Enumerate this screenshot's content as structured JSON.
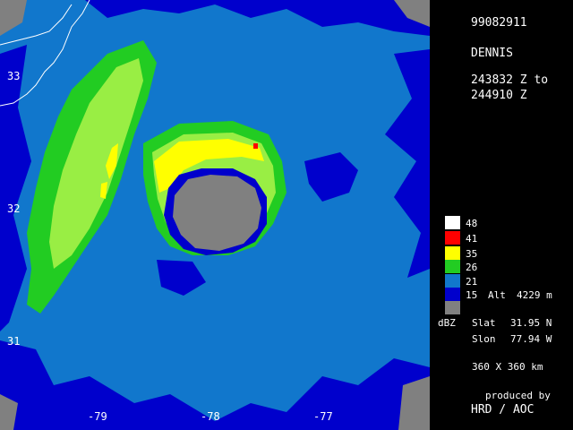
{
  "header": {
    "date_code": "99082911",
    "storm_name": "DENNIS",
    "time_start": "243832 Z to",
    "time_end": "244910 Z"
  },
  "legend": {
    "unit": "dBZ",
    "levels": [
      {
        "label": "48",
        "color": "#ffffff"
      },
      {
        "label": "41",
        "color": "#ff0000"
      },
      {
        "label": "35",
        "color": "#ffff00"
      },
      {
        "label": "26",
        "color": "#22cc22"
      },
      {
        "label": "21",
        "color": "#1177cc"
      },
      {
        "label": "15",
        "color": "#0000cc"
      },
      {
        "label": "",
        "color": "#808080"
      }
    ]
  },
  "info": {
    "alt_label": "Alt",
    "alt_value": "4229 m",
    "slat_label": "Slat",
    "slat_value": "31.95 N",
    "slon_label": "Slon",
    "slon_value": "77.94 W",
    "extent": "360 X 360 km",
    "credit_line1": "produced by",
    "credit_line2": "HRD / AOC"
  },
  "axes": {
    "lat_ticks": [
      "33",
      "32",
      "31"
    ],
    "lon_ticks": [
      "-79",
      "-78",
      "-77"
    ]
  },
  "colors": {
    "background_blue": "#1177cc",
    "weak_blue": "#0000cc",
    "green": "#22cc22",
    "yellow": "#ffff00",
    "red": "#ff0000",
    "eye_gray": "#808080",
    "light_green": "#99ee44"
  }
}
